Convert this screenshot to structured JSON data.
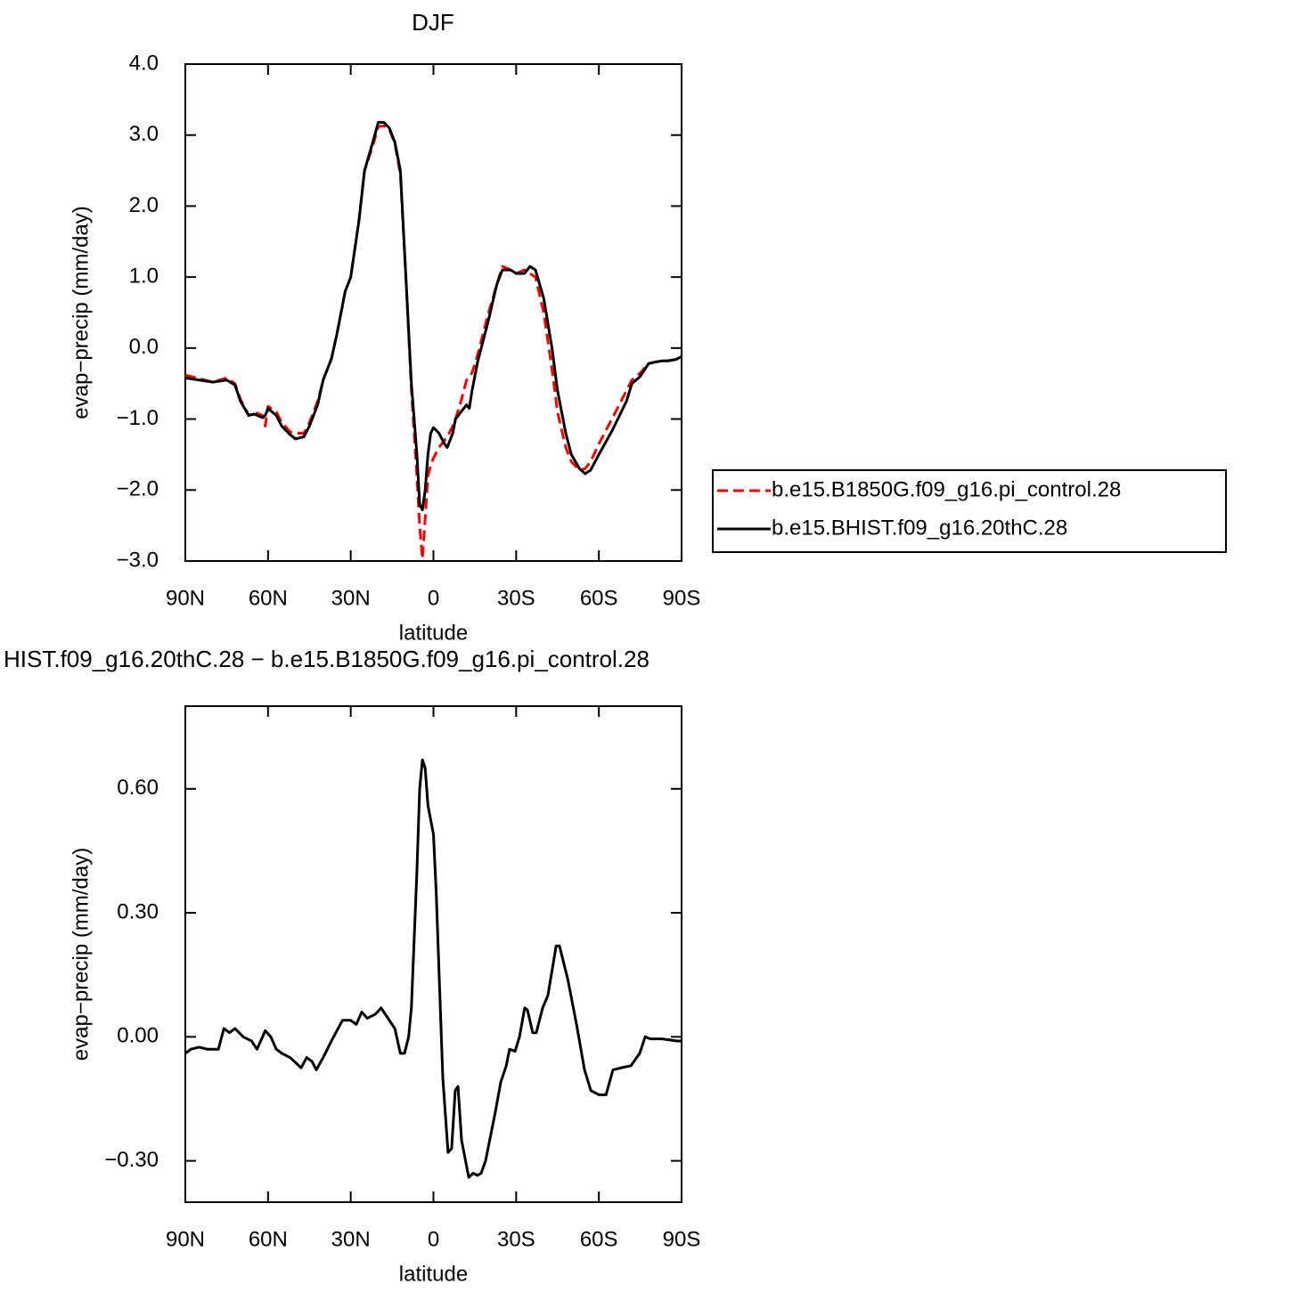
{
  "chart_data": [
    {
      "type": "line",
      "title": "DJF",
      "xlabel": "latitude",
      "ylabel": "evap−precip (mm/day)",
      "x": [
        90,
        85,
        80,
        75,
        72,
        70,
        67,
        65,
        62,
        61,
        60,
        57,
        55,
        52,
        50,
        47,
        45,
        42,
        40,
        37,
        35,
        32,
        30,
        27,
        25,
        22,
        20,
        18,
        16,
        14,
        12,
        10,
        8,
        6,
        5,
        4,
        3,
        2,
        1,
        0,
        -2,
        -4,
        -5,
        -7,
        -8,
        -10,
        -12,
        -13,
        -14,
        -16,
        -20,
        -23,
        -25,
        -28,
        -30,
        -33,
        -35,
        -37,
        -40,
        -43,
        -45,
        -48,
        -50,
        -53,
        -55,
        -57,
        -60,
        -65,
        -70,
        -72,
        -75,
        -78,
        -80,
        -83,
        -85,
        -88,
        -90
      ],
      "series": [
        {
          "name": "b.e15.B1850G.f09_g16.pi_control.28",
          "color": "#ff0000",
          "dashed": true,
          "values": [
            -0.38,
            -0.43,
            -0.48,
            -0.42,
            -0.5,
            -0.72,
            -0.95,
            -0.9,
            -0.95,
            -1.1,
            -0.82,
            -0.9,
            -1.05,
            -1.18,
            -1.2,
            -1.2,
            -1.05,
            -0.75,
            -0.45,
            -0.15,
            0.2,
            0.8,
            1.0,
            1.8,
            2.5,
            2.85,
            3.12,
            3.13,
            3.08,
            2.88,
            2.45,
            1.0,
            -0.6,
            -1.8,
            -2.5,
            -2.97,
            -2.4,
            -1.8,
            -1.65,
            -1.55,
            -1.4,
            -1.3,
            -1.25,
            -1.1,
            -1.0,
            -0.75,
            -0.45,
            -0.4,
            -0.35,
            -0.1,
            0.5,
            0.9,
            1.15,
            1.1,
            1.05,
            1.1,
            1.05,
            1.0,
            0.5,
            -0.3,
            -0.9,
            -1.4,
            -1.6,
            -1.72,
            -1.7,
            -1.6,
            -1.35,
            -0.98,
            -0.6,
            -0.45,
            -0.35,
            -0.22,
            -0.2,
            -0.18,
            -0.18,
            -0.16,
            -0.13
          ]
        },
        {
          "name": "b.e15.BHIST.f09_g16.20thC.28",
          "color": "#000000",
          "dashed": false,
          "values": [
            -0.42,
            -0.45,
            -0.48,
            -0.45,
            -0.52,
            -0.75,
            -0.95,
            -0.93,
            -0.98,
            -0.95,
            -0.85,
            -0.95,
            -1.1,
            -1.22,
            -1.28,
            -1.25,
            -1.1,
            -0.8,
            -0.45,
            -0.15,
            0.2,
            0.8,
            1.0,
            1.8,
            2.5,
            2.9,
            3.18,
            3.18,
            3.1,
            2.9,
            2.5,
            1.0,
            -0.5,
            -1.5,
            -2.2,
            -2.28,
            -2.0,
            -1.5,
            -1.2,
            -1.12,
            -1.2,
            -1.35,
            -1.4,
            -1.2,
            -1.0,
            -0.9,
            -0.8,
            -0.85,
            -0.6,
            -0.2,
            0.4,
            0.9,
            1.1,
            1.1,
            1.05,
            1.05,
            1.15,
            1.1,
            0.7,
            0.0,
            -0.6,
            -1.2,
            -1.5,
            -1.7,
            -1.77,
            -1.72,
            -1.5,
            -1.15,
            -0.75,
            -0.5,
            -0.4,
            -0.22,
            -0.2,
            -0.18,
            -0.18,
            -0.16,
            -0.12
          ]
        }
      ],
      "xlim": [
        90,
        -90
      ],
      "xticks": [
        {
          "value": 90,
          "label": "90N"
        },
        {
          "value": 60,
          "label": "60N"
        },
        {
          "value": 30,
          "label": "30N"
        },
        0,
        {
          "value": -30,
          "label": "30S"
        },
        {
          "value": -60,
          "label": "60S"
        },
        {
          "value": -90,
          "label": "90S"
        }
      ],
      "ylim": [
        -3.0,
        4.0
      ],
      "yticks": [
        {
          "value": 4.0,
          "label": "4.0"
        },
        {
          "value": 3.0,
          "label": "3.0"
        },
        {
          "value": 2.0,
          "label": "2.0"
        },
        {
          "value": 1.0,
          "label": "1.0"
        },
        {
          "value": 0.0,
          "label": "0.0"
        },
        {
          "value": -1.0,
          "label": "−1.0"
        },
        {
          "value": -2.0,
          "label": "−2.0"
        },
        {
          "value": -3.0,
          "label": "−3.0"
        }
      ],
      "legend": "right"
    },
    {
      "type": "line",
      "title": "HIST.f09_g16.20thC.28 − b.e15.B1850G.f09_g16.pi_control.28",
      "xlabel": "latitude",
      "ylabel": "evap−precip (mm/day)",
      "x": [
        90,
        88,
        85,
        82,
        80,
        78,
        76,
        74,
        72,
        69,
        66,
        64,
        61,
        59,
        57,
        55,
        52,
        48,
        46,
        44,
        42.5,
        40,
        37,
        33,
        30,
        28,
        26,
        24,
        21,
        19,
        17,
        14,
        12,
        10.5,
        9,
        8,
        6,
        5,
        4,
        3,
        2,
        0,
        -1,
        -3.4,
        -5.3,
        -6.6,
        -7.9,
        -8.9,
        -10.2,
        -12.8,
        -14.4,
        -16,
        -17.3,
        -18.9,
        -22.5,
        -24.4,
        -26.4,
        -27.6,
        -29.6,
        -31.2,
        -33.1,
        -34.1,
        -36,
        -37.3,
        -39.6,
        -41.5,
        -44.5,
        -45.7,
        -48.7,
        -51.9,
        -54.8,
        -57.1,
        -60,
        -62.6,
        -65.1,
        -68,
        -71.6,
        -74.8,
        -76.8,
        -78.7,
        -82.9,
        -88.4,
        -90
      ],
      "values": [
        -0.04,
        -0.03,
        -0.025,
        -0.03,
        -0.03,
        -0.03,
        0.02,
        0.01,
        0.02,
        0.0,
        -0.01,
        -0.03,
        0.015,
        0.0,
        -0.03,
        -0.04,
        -0.05,
        -0.075,
        -0.05,
        -0.06,
        -0.08,
        -0.05,
        -0.01,
        0.04,
        0.04,
        0.03,
        0.06,
        0.045,
        0.055,
        0.07,
        0.05,
        0.02,
        -0.04,
        -0.04,
        0.0,
        0.07,
        0.4,
        0.6,
        0.67,
        0.65,
        0.56,
        0.49,
        0.35,
        -0.1,
        -0.28,
        -0.27,
        -0.13,
        -0.12,
        -0.25,
        -0.34,
        -0.33,
        -0.335,
        -0.33,
        -0.3,
        -0.18,
        -0.11,
        -0.07,
        -0.03,
        -0.035,
        0.0,
        0.07,
        0.065,
        0.01,
        0.01,
        0.07,
        0.1,
        0.22,
        0.22,
        0.14,
        0.03,
        -0.08,
        -0.13,
        -0.14,
        -0.14,
        -0.08,
        -0.075,
        -0.07,
        -0.04,
        0.0,
        -0.005,
        -0.005,
        -0.01,
        -0.01
      ],
      "color": "#000000",
      "xlim": [
        90,
        -90
      ],
      "xticks": [
        {
          "value": 90,
          "label": "90N"
        },
        {
          "value": 60,
          "label": "60N"
        },
        {
          "value": 30,
          "label": "30N"
        },
        0,
        {
          "value": -30,
          "label": "30S"
        },
        {
          "value": -60,
          "label": "60S"
        },
        {
          "value": -90,
          "label": "90S"
        }
      ],
      "ylim": [
        -0.4,
        0.8
      ],
      "yticks": [
        {
          "value": 0.6,
          "label": "0.60"
        },
        {
          "value": 0.3,
          "label": "0.30"
        },
        {
          "value": 0.0,
          "label": "0.00"
        },
        {
          "value": -0.3,
          "label": "−0.30"
        }
      ]
    }
  ]
}
